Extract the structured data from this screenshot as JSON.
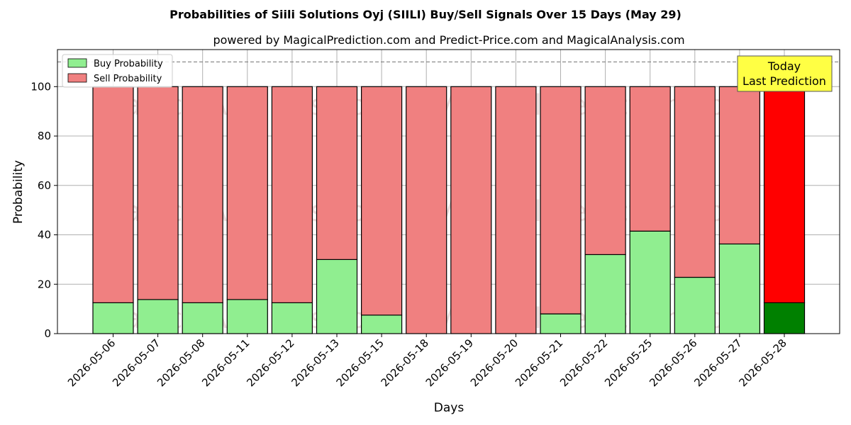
{
  "chart_data": {
    "type": "bar",
    "stacked": true,
    "title": "Probabilities of Siili Solutions Oyj (SIILI) Buy/Sell Signals Over 15 Days (May 29)",
    "subtitle": "powered by MagicalPrediction.com and Predict-Price.com and MagicalAnalysis.com",
    "xlabel": "Days",
    "ylabel": "Probability",
    "ylim": [
      0,
      115
    ],
    "yticks": [
      0,
      20,
      40,
      60,
      80,
      100
    ],
    "reference_line": 110,
    "grid": true,
    "legend_position": "top-left",
    "categories": [
      "2026-05-06",
      "2026-05-07",
      "2026-05-08",
      "2026-05-11",
      "2026-05-12",
      "2026-05-13",
      "2026-05-15",
      "2026-05-18",
      "2026-05-19",
      "2026-05-20",
      "2026-05-21",
      "2026-05-22",
      "2026-05-25",
      "2026-05-26",
      "2026-05-27",
      "2026-05-28"
    ],
    "series": [
      {
        "name": "Buy Probability",
        "color": "#90ee90",
        "values": [
          12.5,
          13.8,
          12.5,
          13.8,
          12.5,
          30,
          7.5,
          0,
          0,
          0,
          8,
          32,
          41.5,
          22.8,
          36.3,
          12.5
        ]
      },
      {
        "name": "Sell Probability",
        "color": "#f08080",
        "values": [
          87.5,
          86.2,
          87.5,
          86.2,
          87.5,
          70,
          92.5,
          100,
          100,
          100,
          92,
          68,
          58.5,
          77.2,
          63.7,
          87.5
        ]
      }
    ],
    "highlight": {
      "index": 15,
      "buy_color": "#008000",
      "sell_color": "#ff0000"
    },
    "annotation": {
      "lines": [
        "Today",
        "Last Prediction"
      ],
      "background": "#ffff44"
    },
    "watermarks": [
      "MagicalAnalysis.com",
      "MagicalPrediction.com"
    ]
  }
}
